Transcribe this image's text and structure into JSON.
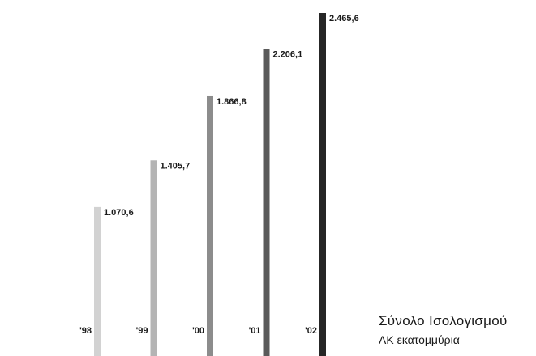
{
  "chart_data": {
    "type": "bar",
    "title": "Σύνολο Ισολογισμού",
    "subtitle": "ΛΚ εκατομμύρια",
    "xlabel": "",
    "ylabel": "",
    "categories": [
      "'98",
      "'99",
      "'00",
      "'01",
      "'02"
    ],
    "values": [
      1070.6,
      1405.7,
      1866.8,
      2206.1,
      2465.6
    ],
    "value_labels": [
      "1.070,6",
      "1.405,7",
      "1.866,8",
      "2.206,1",
      "2.465,6"
    ],
    "ylim": [
      0,
      2465.6
    ],
    "grid": false,
    "legend": "none",
    "bar_colors": [
      "#d2d2d2",
      "#b4b4b4",
      "#8c8c8c",
      "#5a5a5a",
      "#262626"
    ]
  }
}
